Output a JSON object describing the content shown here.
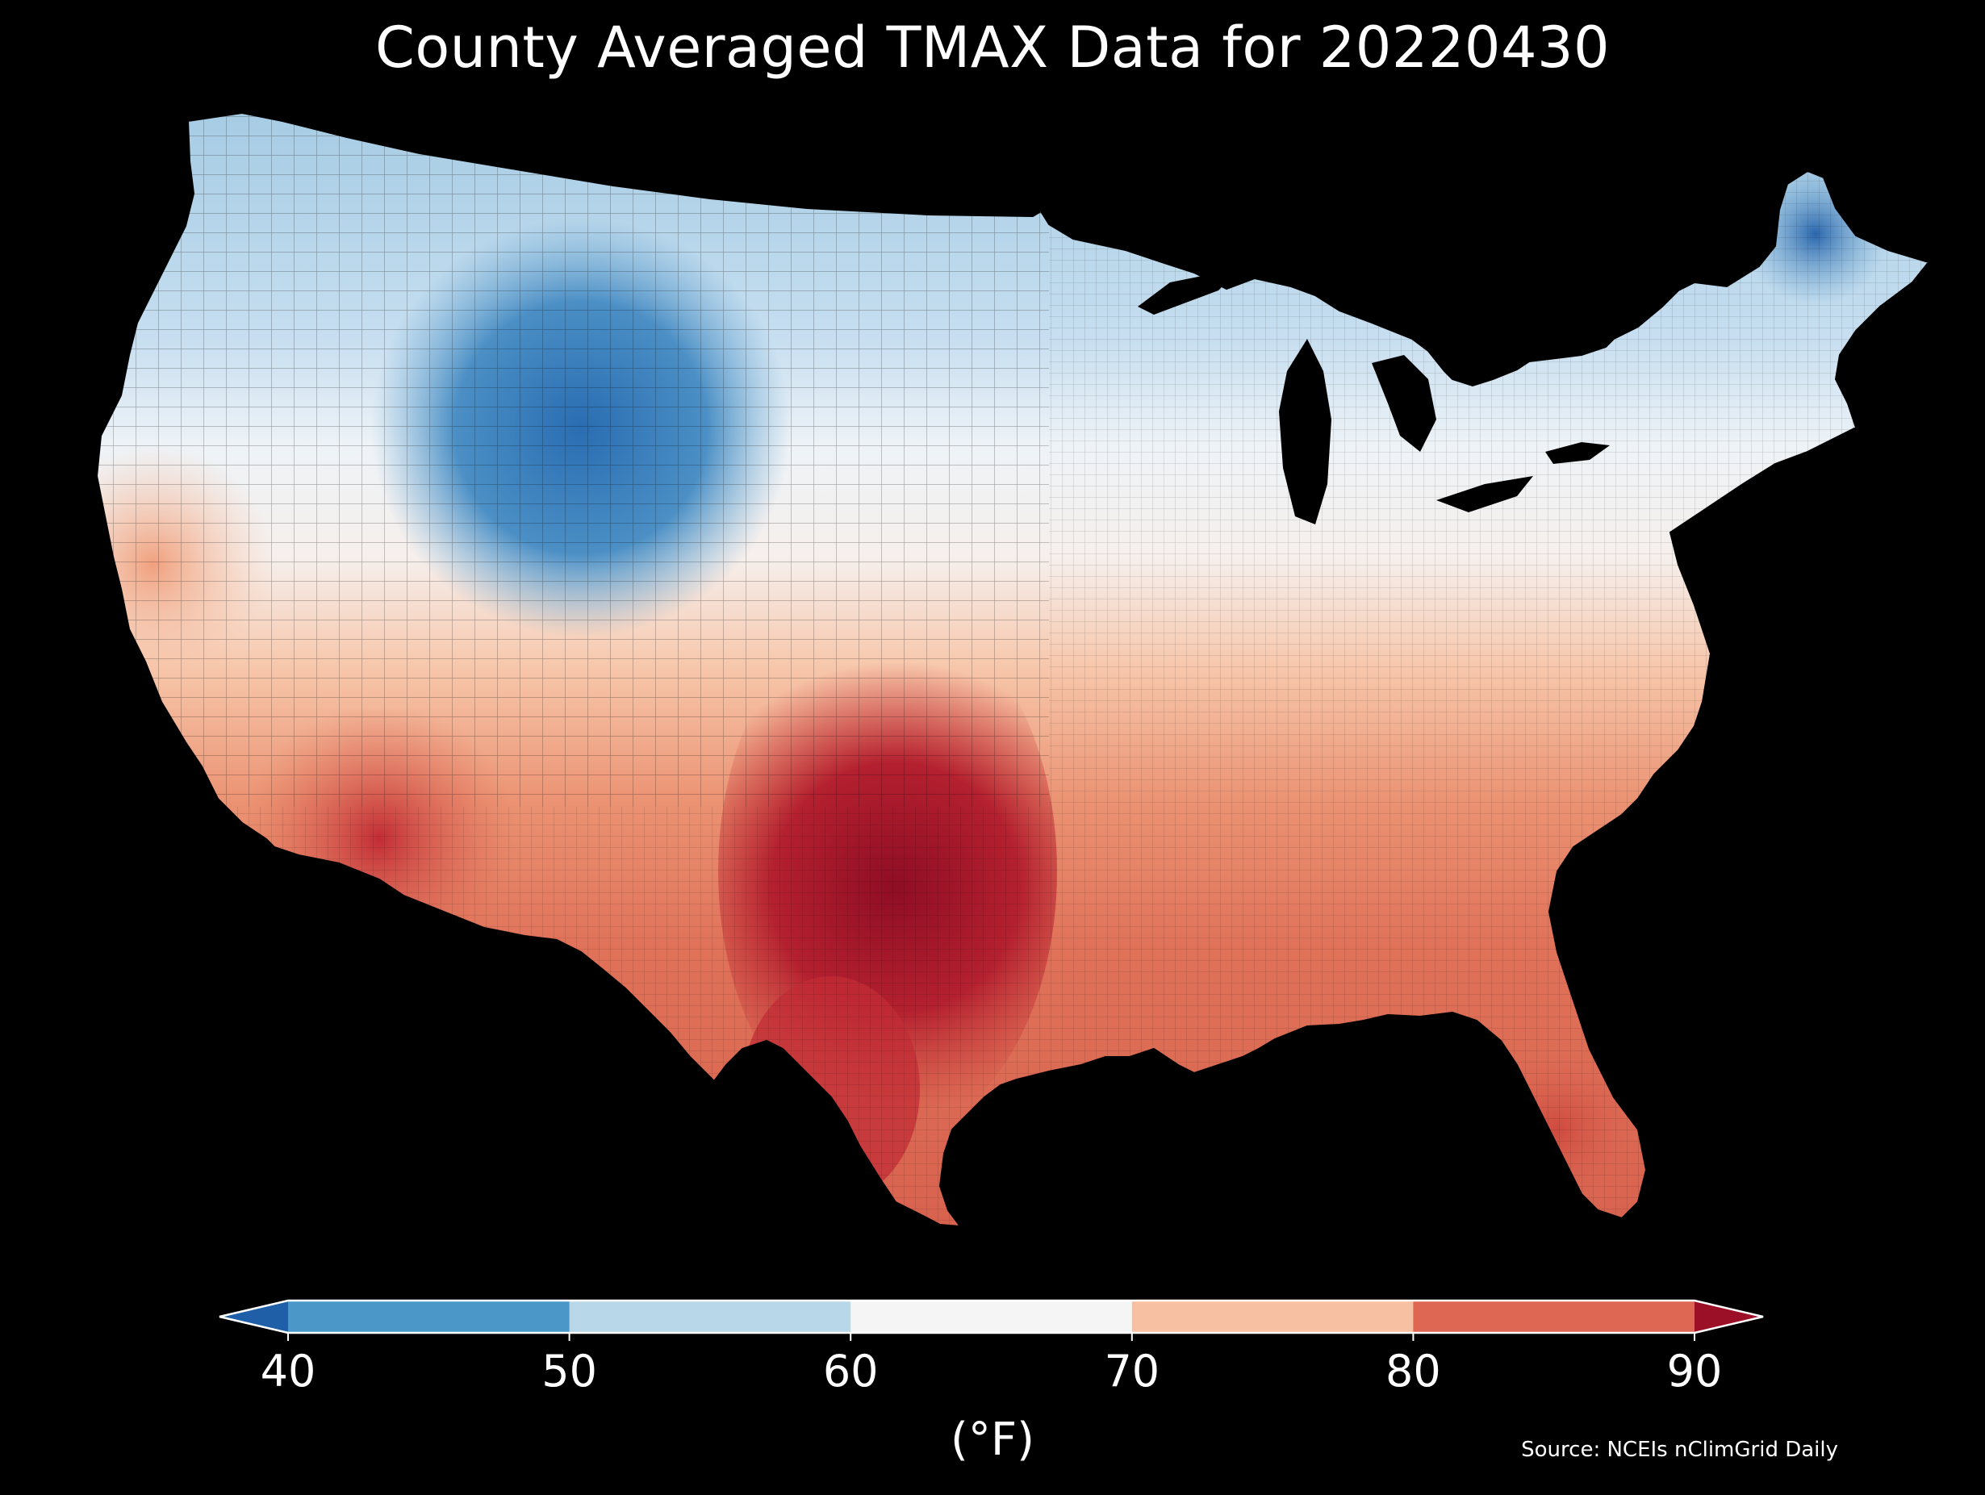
{
  "title": "County Averaged TMAX Data for 20220430",
  "source": "Source: NCEIs nClimGrid Daily",
  "colorbar": {
    "unit_label": "(°F)",
    "ticks": [
      "40",
      "50",
      "60",
      "70",
      "80",
      "90"
    ],
    "bins": [
      {
        "range": "<40",
        "color": "#1f5fa8"
      },
      {
        "range": "40-50",
        "color": "#4b98c8"
      },
      {
        "range": "50-60",
        "color": "#b8d8ea"
      },
      {
        "range": "60-70",
        "color": "#f5f5f5"
      },
      {
        "range": "70-80",
        "color": "#f8c0a2"
      },
      {
        "range": "80-90",
        "color": "#de6754"
      },
      {
        "range": ">90",
        "color": "#9b1027"
      }
    ]
  },
  "palette": {
    "background": "#000000",
    "cold_deep": "#2a6db2",
    "cold": "#7ab3d6",
    "cool": "#c6def0",
    "neutral": "#f3f3f3",
    "warm": "#f7bfa0",
    "hot": "#e07259",
    "very_hot": "#c22c35",
    "extreme": "#8f0d24"
  }
}
